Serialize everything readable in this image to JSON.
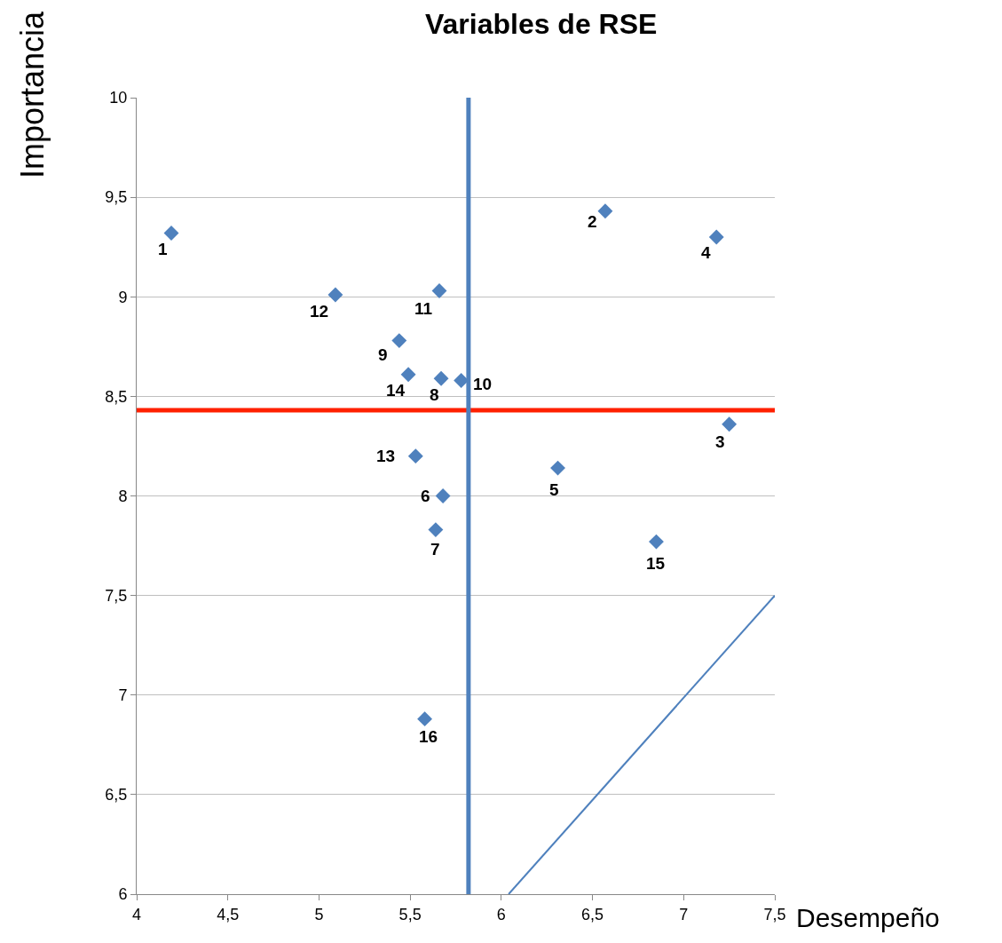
{
  "chart_data": {
    "type": "scatter",
    "title": "Variables de RSE",
    "xlabel": "Desempeño",
    "ylabel": "Importancia",
    "xlim": [
      4,
      7.5
    ],
    "ylim": [
      6,
      10
    ],
    "xticks": [
      4,
      {
        "value": 4.5,
        "label": "4,5"
      },
      5,
      {
        "value": 5.5,
        "label": "5,5"
      },
      6,
      {
        "value": 6.5,
        "label": "6,5"
      },
      7,
      {
        "value": 7.5,
        "label": "7,5"
      }
    ],
    "yticks": [
      6,
      {
        "value": 6.5,
        "label": "6,5"
      },
      7,
      {
        "value": 7.5,
        "label": "7,5"
      },
      8,
      {
        "value": 8.5,
        "label": "8,5"
      },
      9,
      {
        "value": 9.5,
        "label": "9,5"
      },
      10
    ],
    "grid": "y",
    "series": [
      {
        "type": "scatter",
        "marker": "diamond",
        "color": "#4f81bd",
        "x": [
          4.19,
          6.57,
          7.25,
          7.18,
          6.31,
          5.68,
          5.64,
          5.67,
          5.44,
          5.78,
          5.66,
          5.09,
          5.53,
          5.49,
          6.85,
          5.58
        ],
        "values": [
          9.32,
          9.43,
          8.36,
          9.3,
          8.14,
          8.0,
          7.83,
          8.59,
          8.78,
          8.58,
          9.03,
          9.01,
          8.2,
          8.61,
          7.77,
          6.88
        ]
      },
      {
        "type": "line",
        "marker": "none",
        "color": "#4f81bd",
        "x": [
          6.04,
          7.5
        ],
        "values": [
          6,
          7.5
        ]
      }
    ],
    "ref_lines": [
      {
        "axis": "y",
        "value": 8.43,
        "color": "#ff2000"
      },
      {
        "axis": "x",
        "value": 5.82,
        "color": "#4f81bd"
      }
    ],
    "annotations": [
      {
        "text": "1",
        "x": 4.19,
        "y": 9.32
      },
      {
        "text": "2",
        "x": 6.57,
        "y": 9.43
      },
      {
        "text": "3",
        "x": 7.25,
        "y": 8.36
      },
      {
        "text": "4",
        "x": 7.18,
        "y": 9.3
      },
      {
        "text": "5",
        "x": 6.31,
        "y": 8.14
      },
      {
        "text": "6",
        "x": 5.68,
        "y": 8.0
      },
      {
        "text": "7",
        "x": 5.64,
        "y": 7.83
      },
      {
        "text": "8",
        "x": 5.67,
        "y": 8.59
      },
      {
        "text": "9",
        "x": 5.44,
        "y": 8.78
      },
      {
        "text": "10",
        "x": 5.78,
        "y": 8.58
      },
      {
        "text": "11",
        "x": 5.66,
        "y": 9.03
      },
      {
        "text": "12",
        "x": 5.09,
        "y": 9.01
      },
      {
        "text": "13",
        "x": 5.53,
        "y": 8.2
      },
      {
        "text": "14",
        "x": 5.49,
        "y": 8.61
      },
      {
        "text": "15",
        "x": 6.85,
        "y": 7.77
      },
      {
        "text": "16",
        "x": 5.58,
        "y": 6.88
      }
    ]
  }
}
